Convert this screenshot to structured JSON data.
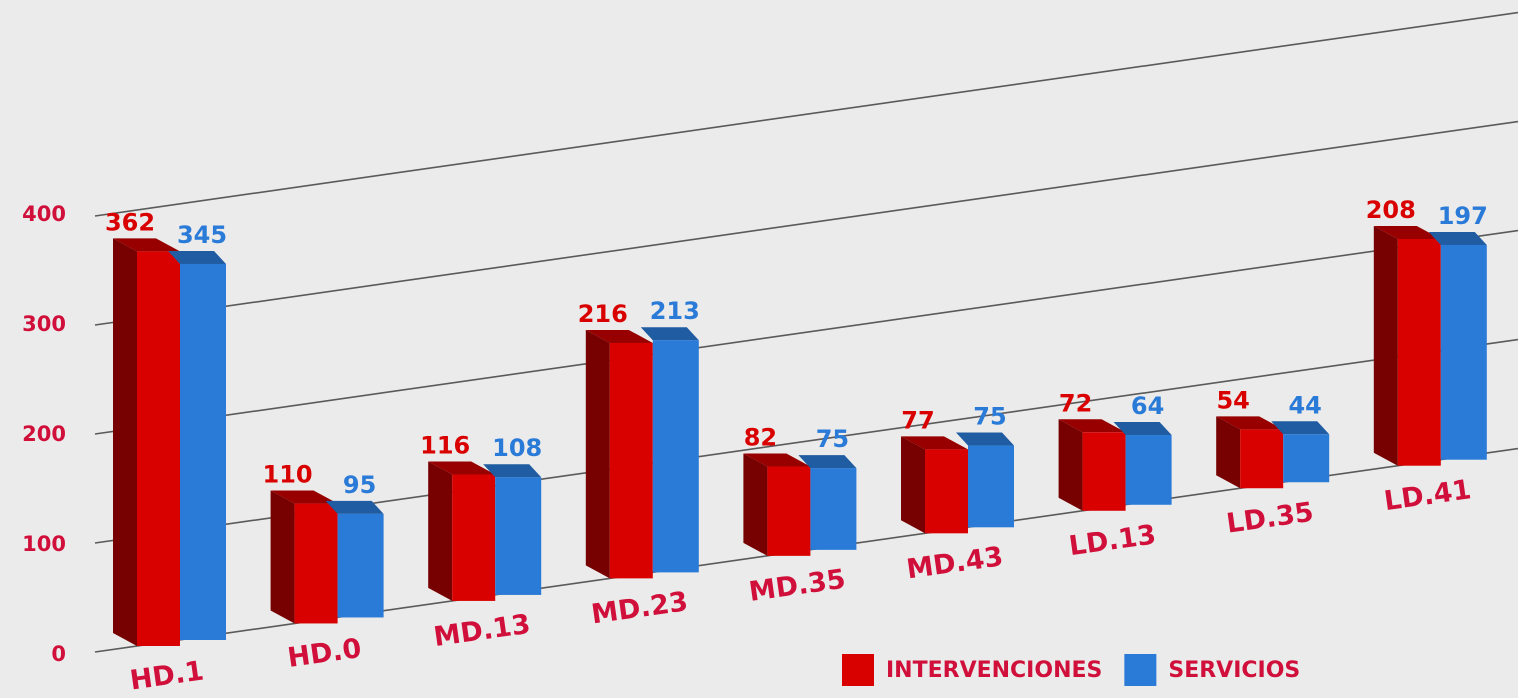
{
  "chart_data": {
    "type": "bar3d",
    "categories": [
      "HD.1",
      "HD.0",
      "MD.13",
      "MD.23",
      "MD.35",
      "MD.43",
      "LD.13",
      "LD.35",
      "LD.41"
    ],
    "series": [
      {
        "name": "INTERVENCIONES",
        "color": "#d90000",
        "values": [
          362,
          110,
          116,
          216,
          82,
          77,
          72,
          54,
          208
        ]
      },
      {
        "name": "SERVICIOS",
        "color": "#2a7ad8",
        "values": [
          345,
          95,
          108,
          213,
          75,
          75,
          64,
          44,
          197
        ]
      }
    ],
    "ylim": [
      0,
      400
    ],
    "yticks": [
      0,
      100,
      200,
      300,
      400
    ],
    "grid": true
  }
}
